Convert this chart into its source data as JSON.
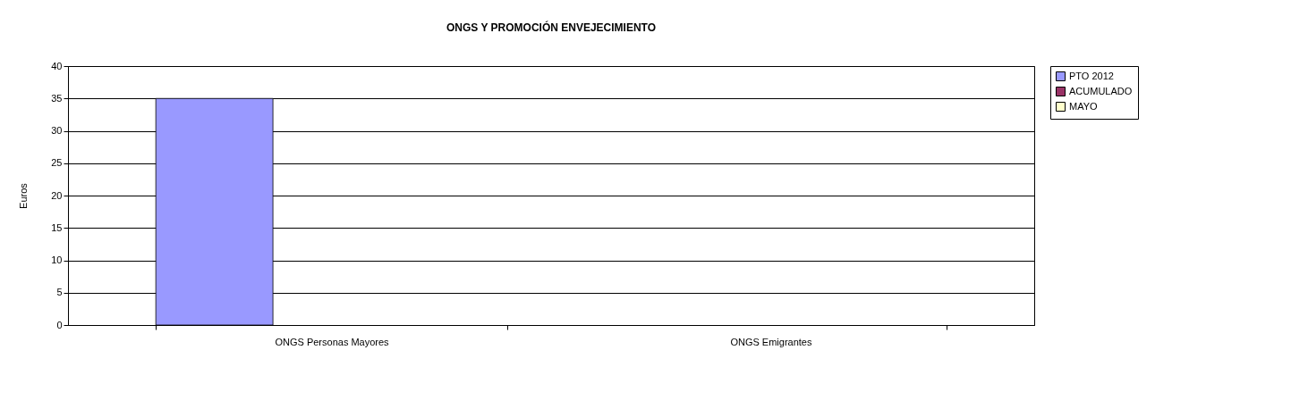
{
  "chart_data": {
    "type": "bar",
    "title": "ONGS Y PROMOCIÓN ENVEJECIMIENTO",
    "ylabel": "Euros",
    "categories": [
      "ONGS Personas Mayores",
      "ONGS Emigrantes"
    ],
    "series": [
      {
        "name": "PTO 2012",
        "color": "#9999ff",
        "values": [
          35,
          0
        ]
      },
      {
        "name": "ACUMULADO",
        "color": "#993366",
        "values": [
          0,
          0
        ]
      },
      {
        "name": "MAYO",
        "color": "#ffffcc",
        "values": [
          0,
          0
        ]
      }
    ],
    "ylim": [
      0,
      40
    ],
    "yticks": [
      0,
      5,
      10,
      15,
      20,
      25,
      30,
      35,
      40
    ],
    "grid": "y",
    "legend": "right"
  }
}
